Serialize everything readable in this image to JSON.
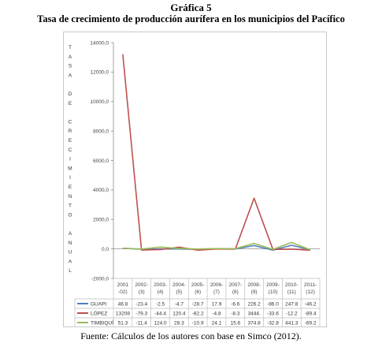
{
  "figure": {
    "label": "Gráfica 5",
    "title": "Tasa de crecimiento de producción aurífera en los municipios del Pacífico",
    "source": "Fuente: Cálculos de los autores con base en Simco (2012)."
  },
  "chart_data": {
    "type": "line",
    "ylabel": "TASA DE CRECIMIENTO ANUAL",
    "ylim": [
      -2000,
      14000
    ],
    "yticks": [
      -2000,
      0,
      2000,
      4000,
      6000,
      8000,
      10000,
      12000,
      14000
    ],
    "ytick_labels": [
      "-2000,0",
      "0,0",
      "2000,0",
      "4000,0",
      "6000,0",
      "8000,0",
      "10000,0",
      "12000,0",
      "14000,0"
    ],
    "categories": [
      [
        "2001",
        "-02)"
      ],
      [
        "2002-",
        "(3)"
      ],
      [
        "2003-",
        "(4)"
      ],
      [
        "2004-",
        "(5)"
      ],
      [
        "2005-",
        "(6)"
      ],
      [
        "2006-",
        "(7)"
      ],
      [
        "2007-",
        "(8)"
      ],
      [
        "2008-",
        "(9)"
      ],
      [
        "2009-",
        "(10)"
      ],
      [
        "2010-",
        "(11)"
      ],
      [
        "2011-",
        "(12)"
      ]
    ],
    "series": [
      {
        "name": "GUAPI",
        "color": "#4f81bd",
        "values": [
          46.8,
          -23.4,
          -2.5,
          -4.7,
          -28.7,
          17.9,
          -6.6,
          226.2,
          -86.0,
          247.8,
          -46.2
        ],
        "labels": [
          "46.8",
          "-23.4",
          "-2.5",
          "-4.7",
          "-28.7",
          "17.9",
          "-6.6",
          "226.2",
          "-86.0",
          "247.8",
          "-46.2"
        ]
      },
      {
        "name": "LÓPEZ",
        "color": "#c0504d",
        "values": [
          13208,
          -79.3,
          -44.4,
          120.4,
          -82.2,
          -4.8,
          -8.3,
          3444,
          -33.6,
          -12.2,
          -89.4
        ],
        "labels": [
          "13208",
          "-79.3",
          "-44.4",
          "120.4",
          "-82.2",
          "-4.8",
          "-8.3",
          "3444.",
          "-33.6",
          "-12.2",
          "-89.4"
        ]
      },
      {
        "name": "TIMBIQUÍ",
        "color": "#9bbb59",
        "values": [
          51.3,
          -11.4,
          124.0,
          28.3,
          -10.9,
          24.1,
          15.6,
          374.8,
          -32.8,
          441.3,
          -69.2
        ],
        "labels": [
          "51.3",
          "-11.4",
          "124.0",
          "28.3",
          "-10.9",
          "24.1",
          "15.6",
          "374.8",
          "-32.8",
          "441.3",
          "-69.2"
        ]
      }
    ],
    "grid": false,
    "legend": "table-below"
  }
}
